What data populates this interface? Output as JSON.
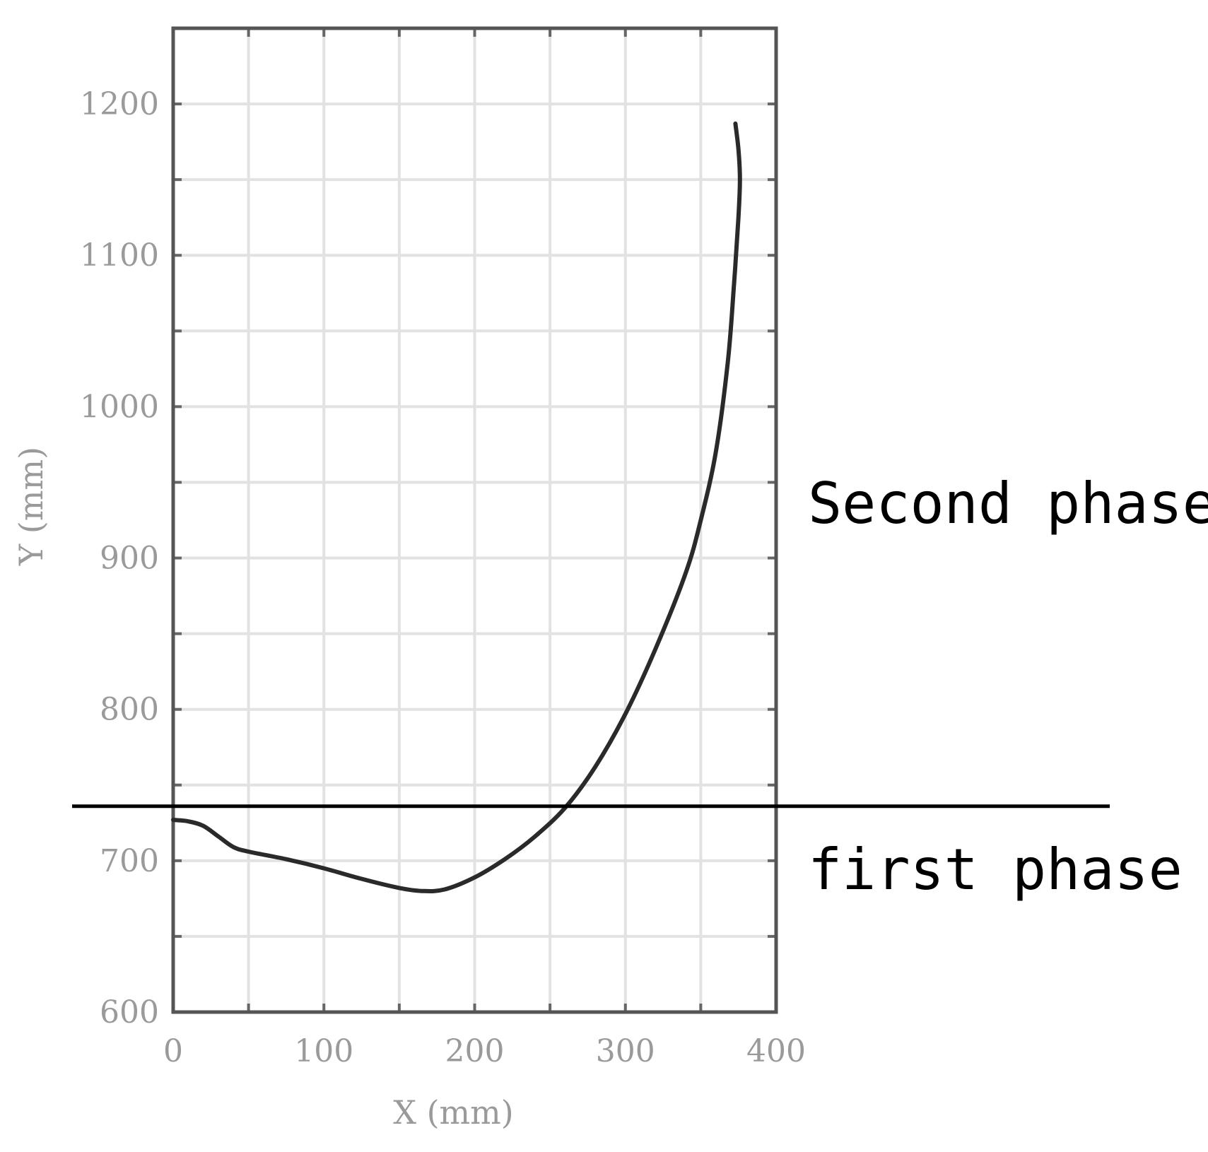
{
  "chart_data": {
    "type": "line",
    "xlabel": "X (mm)",
    "ylabel": "Y (mm)",
    "xlim": [
      0,
      400
    ],
    "ylim": [
      600,
      1250
    ],
    "x_ticks": [
      0,
      100,
      200,
      300,
      400
    ],
    "y_ticks": [
      600,
      700,
      800,
      900,
      1000,
      1100,
      1200
    ],
    "x_minor_step": 50,
    "y_minor_step": 50,
    "grid": true,
    "phase_boundary_y": 736,
    "annotations": [
      {
        "text": "Second phase",
        "region": "above-boundary"
      },
      {
        "text": "first phase",
        "region": "below-boundary"
      }
    ],
    "series": [
      {
        "x": [
          0,
          10,
          20,
          30,
          40,
          50,
          75,
          100,
          125,
          150,
          165,
          180,
          200,
          220,
          240,
          260,
          280,
          300,
          320,
          340,
          350,
          360,
          368,
          372,
          375,
          376,
          375,
          373
        ],
        "y": [
          727,
          726,
          723,
          716,
          709,
          706,
          701,
          695,
          688,
          682,
          680,
          681,
          689,
          701,
          716,
          735,
          762,
          797,
          840,
          890,
          925,
          970,
          1030,
          1080,
          1125,
          1150,
          1170,
          1187
        ]
      }
    ]
  }
}
